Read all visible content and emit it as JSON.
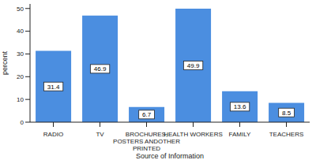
{
  "chart_data": {
    "type": "bar",
    "x_label": "Source of Information",
    "y_label": "percent",
    "categories": [
      "RADIO",
      "TV",
      "BROCHURES, POSTERS ANDOTHER PRINTED",
      "HEALTH WORKERS",
      "FAMILY",
      "TEACHERS"
    ],
    "values": [
      31.4,
      46.9,
      6.7,
      49.9,
      13.6,
      8.5
    ],
    "color": "#4b8ee0",
    "ylim": [
      0,
      52
    ],
    "yticks": [
      0,
      10,
      20,
      30,
      40,
      50
    ],
    "grid": false,
    "data_labels": true
  }
}
